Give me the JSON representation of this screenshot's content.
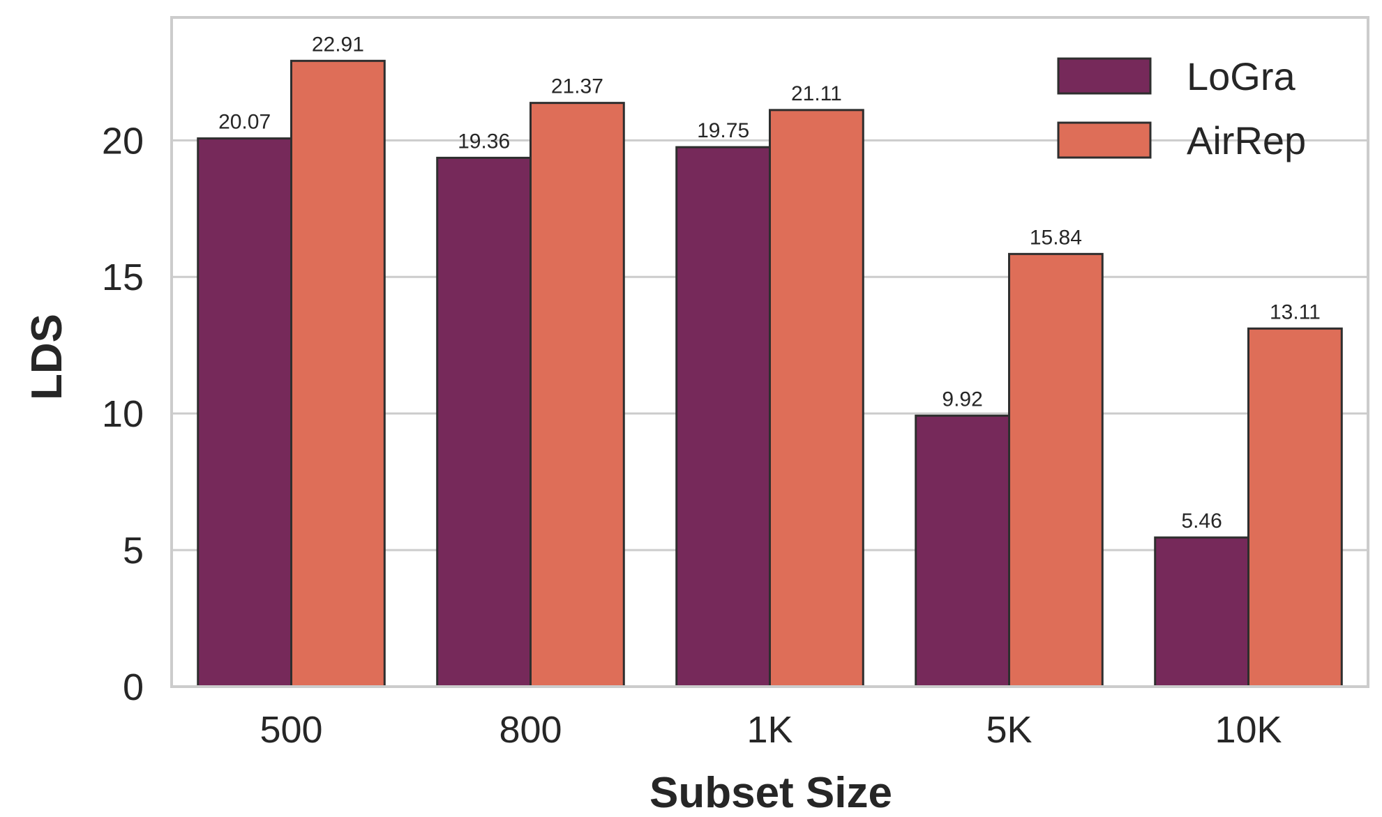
{
  "chart_data": {
    "type": "bar",
    "xlabel": "Subset Size",
    "ylabel": "LDS",
    "categories": [
      "500",
      "800",
      "1K",
      "5K",
      "10K"
    ],
    "series": [
      {
        "name": "LoGra",
        "color": "#76295a",
        "values": [
          20.07,
          19.36,
          19.75,
          9.92,
          5.46
        ],
        "labels": [
          "20.07",
          "19.36",
          "19.75",
          "9.92",
          "5.46"
        ]
      },
      {
        "name": "AirRep",
        "color": "#de6e58",
        "values": [
          22.91,
          21.37,
          21.11,
          15.84,
          13.11
        ],
        "labels": [
          "22.91",
          "21.37",
          "21.11",
          "15.84",
          "13.11"
        ]
      }
    ],
    "ylim": [
      0,
      24.5
    ],
    "yticks": [
      0,
      5,
      10,
      15,
      20
    ],
    "ytick_labels": [
      "0",
      "5",
      "10",
      "15",
      "20"
    ],
    "grid": "horizontal",
    "legend_position": "top-right",
    "colors": {
      "grid": "#cccccc",
      "frame": "#cccccc",
      "bar_edge": "#2e2e2e",
      "text": "#262626"
    }
  }
}
